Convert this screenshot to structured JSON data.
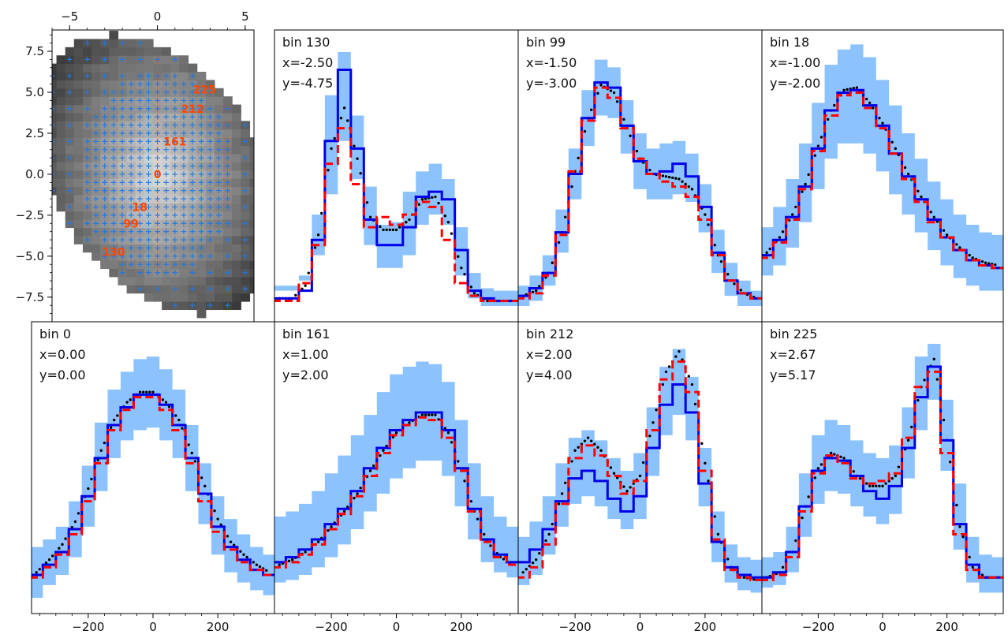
{
  "colors": {
    "model": "#0000e6",
    "alt_model": "#ff0000",
    "truth": "#000000",
    "band": "#8cc3ff",
    "map_marker": "#1e78e6",
    "map_label": "#ff4500"
  },
  "map": {
    "type": "heatmap",
    "x_ticks": [
      "−5",
      "0",
      "5"
    ],
    "y_ticks": [
      "7.5",
      "5.0",
      "2.5",
      "0.0",
      "−2.5",
      "−5.0",
      "−7.5"
    ],
    "xlim": [
      -6.0,
      5.5
    ],
    "ylim": [
      -9.0,
      8.8
    ],
    "labels": [
      {
        "text": "225",
        "x": 2.67,
        "y": 5.17
      },
      {
        "text": "212",
        "x": 2.0,
        "y": 4.0
      },
      {
        "text": "161",
        "x": 1.0,
        "y": 2.0
      },
      {
        "text": "0",
        "x": 0.0,
        "y": 0.0
      },
      {
        "text": "18",
        "x": -1.0,
        "y": -2.0
      },
      {
        "text": "99",
        "x": -1.5,
        "y": -3.0
      },
      {
        "text": "130",
        "x": -2.5,
        "y": -4.75
      }
    ]
  },
  "x_ticks": [
    "−200",
    "0",
    "200"
  ],
  "chart_data": [
    {
      "type": "line",
      "bin": "bin 130",
      "x_text": "x=-2.50",
      "y_text": "y=-4.75",
      "x": [
        -360,
        -320,
        -280,
        -240,
        -200,
        -160,
        -120,
        -80,
        -40,
        0,
        40,
        80,
        120,
        160,
        200,
        240,
        280,
        320,
        360
      ],
      "model": [
        0.03,
        0.03,
        0.06,
        0.26,
        0.65,
        0.93,
        0.62,
        0.34,
        0.24,
        0.24,
        0.31,
        0.43,
        0.45,
        0.42,
        0.22,
        0.06,
        0.03,
        0.02,
        0.02
      ],
      "alt": [
        0.02,
        0.02,
        0.09,
        0.24,
        0.56,
        0.7,
        0.48,
        0.31,
        0.35,
        0.32,
        0.36,
        0.41,
        0.39,
        0.26,
        0.09,
        0.04,
        0.02,
        0.02,
        0.02
      ],
      "truth": [
        0.03,
        0.03,
        0.08,
        0.28,
        0.62,
        0.78,
        0.58,
        0.35,
        0.3,
        0.3,
        0.34,
        0.42,
        0.43,
        0.33,
        0.15,
        0.05,
        0.02,
        0.02,
        0.02
      ],
      "lo": [
        0.06,
        0.06,
        0.1,
        0.2,
        0.44,
        0.65,
        0.5,
        0.24,
        0.15,
        0.15,
        0.2,
        0.32,
        0.36,
        0.32,
        0.12,
        0.03,
        0.0,
        0.0,
        0.0
      ],
      "hi": [
        0.08,
        0.08,
        0.12,
        0.36,
        0.83,
        1.0,
        0.75,
        0.47,
        0.32,
        0.33,
        0.45,
        0.53,
        0.56,
        0.5,
        0.31,
        0.13,
        0.07,
        0.06,
        0.06
      ]
    },
    {
      "type": "line",
      "bin": "bin 99",
      "x_text": "x=-1.50",
      "y_text": "y=-3.00",
      "x": [
        -360,
        -320,
        -280,
        -240,
        -200,
        -160,
        -120,
        -80,
        -40,
        0,
        40,
        80,
        120,
        160,
        200,
        240,
        280,
        320,
        360
      ],
      "model": [
        0.04,
        0.07,
        0.13,
        0.29,
        0.52,
        0.74,
        0.88,
        0.86,
        0.71,
        0.57,
        0.52,
        0.53,
        0.56,
        0.51,
        0.39,
        0.21,
        0.1,
        0.05,
        0.03
      ],
      "alt": [
        0.03,
        0.05,
        0.12,
        0.28,
        0.53,
        0.73,
        0.86,
        0.82,
        0.7,
        0.58,
        0.52,
        0.49,
        0.47,
        0.43,
        0.34,
        0.2,
        0.1,
        0.05,
        0.03
      ],
      "truth": [
        0.04,
        0.06,
        0.13,
        0.29,
        0.53,
        0.74,
        0.87,
        0.84,
        0.7,
        0.58,
        0.52,
        0.51,
        0.5,
        0.46,
        0.36,
        0.2,
        0.1,
        0.05,
        0.03
      ],
      "lo": [
        0.0,
        0.02,
        0.08,
        0.21,
        0.42,
        0.63,
        0.75,
        0.74,
        0.6,
        0.46,
        0.42,
        0.42,
        0.44,
        0.41,
        0.29,
        0.13,
        0.04,
        0.0,
        0.0
      ],
      "hi": [
        0.08,
        0.12,
        0.2,
        0.38,
        0.62,
        0.85,
        0.97,
        0.94,
        0.81,
        0.68,
        0.62,
        0.64,
        0.65,
        0.6,
        0.48,
        0.3,
        0.17,
        0.1,
        0.06
      ]
    },
    {
      "type": "line",
      "bin": "bin 18",
      "x_text": "x=-1.00",
      "y_text": "y=-2.00",
      "x": [
        -360,
        -320,
        -280,
        -240,
        -200,
        -160,
        -120,
        -80,
        -40,
        0,
        40,
        80,
        120,
        160,
        200,
        240,
        280,
        320,
        360
      ],
      "model": [
        0.2,
        0.26,
        0.35,
        0.47,
        0.62,
        0.77,
        0.84,
        0.85,
        0.79,
        0.71,
        0.6,
        0.51,
        0.42,
        0.34,
        0.27,
        0.22,
        0.18,
        0.16,
        0.15
      ],
      "alt": [
        0.19,
        0.25,
        0.34,
        0.46,
        0.61,
        0.75,
        0.83,
        0.84,
        0.78,
        0.7,
        0.6,
        0.5,
        0.41,
        0.33,
        0.27,
        0.22,
        0.18,
        0.16,
        0.15
      ],
      "truth": [
        0.21,
        0.27,
        0.36,
        0.48,
        0.63,
        0.77,
        0.85,
        0.86,
        0.8,
        0.72,
        0.62,
        0.52,
        0.43,
        0.35,
        0.28,
        0.23,
        0.19,
        0.17,
        0.16
      ],
      "lo": [
        0.12,
        0.16,
        0.23,
        0.33,
        0.46,
        0.58,
        0.64,
        0.64,
        0.6,
        0.53,
        0.44,
        0.36,
        0.29,
        0.22,
        0.16,
        0.11,
        0.08,
        0.06,
        0.06
      ],
      "hi": [
        0.31,
        0.39,
        0.5,
        0.64,
        0.8,
        0.95,
        1.01,
        1.03,
        0.98,
        0.89,
        0.79,
        0.68,
        0.58,
        0.49,
        0.42,
        0.36,
        0.32,
        0.29,
        0.28
      ]
    },
    {
      "type": "line",
      "bin": "bin 0",
      "x_text": "x=0.00",
      "y_text": "y=0.00",
      "x": [
        -360,
        -320,
        -280,
        -240,
        -200,
        -160,
        -120,
        -80,
        -40,
        0,
        40,
        80,
        120,
        160,
        200,
        240,
        280,
        320,
        360
      ],
      "model": [
        0.09,
        0.13,
        0.18,
        0.27,
        0.4,
        0.55,
        0.68,
        0.75,
        0.8,
        0.8,
        0.76,
        0.68,
        0.55,
        0.41,
        0.28,
        0.2,
        0.15,
        0.11,
        0.09
      ],
      "alt": [
        0.08,
        0.12,
        0.17,
        0.25,
        0.38,
        0.53,
        0.66,
        0.74,
        0.79,
        0.79,
        0.74,
        0.66,
        0.53,
        0.38,
        0.26,
        0.19,
        0.14,
        0.11,
        0.09
      ],
      "truth": [
        0.1,
        0.15,
        0.21,
        0.3,
        0.43,
        0.58,
        0.7,
        0.77,
        0.81,
        0.81,
        0.77,
        0.7,
        0.57,
        0.44,
        0.31,
        0.22,
        0.17,
        0.13,
        0.1
      ],
      "lo": [
        0.0,
        0.05,
        0.09,
        0.16,
        0.28,
        0.42,
        0.55,
        0.62,
        0.66,
        0.67,
        0.62,
        0.55,
        0.42,
        0.29,
        0.17,
        0.1,
        0.06,
        0.03,
        0.01
      ],
      "hi": [
        0.2,
        0.23,
        0.28,
        0.38,
        0.52,
        0.69,
        0.82,
        0.89,
        0.94,
        0.95,
        0.9,
        0.82,
        0.68,
        0.53,
        0.4,
        0.31,
        0.25,
        0.2,
        0.17
      ]
    },
    {
      "type": "line",
      "bin": "bin 161",
      "x_text": "x=1.00",
      "y_text": "y=2.00",
      "x": [
        -360,
        -320,
        -280,
        -240,
        -200,
        -160,
        -120,
        -80,
        -40,
        0,
        40,
        80,
        120,
        160,
        200,
        240,
        280,
        320,
        360
      ],
      "model": [
        0.14,
        0.16,
        0.19,
        0.23,
        0.29,
        0.35,
        0.42,
        0.51,
        0.59,
        0.66,
        0.7,
        0.73,
        0.73,
        0.66,
        0.51,
        0.35,
        0.23,
        0.17,
        0.14
      ],
      "alt": [
        0.12,
        0.14,
        0.17,
        0.21,
        0.27,
        0.33,
        0.4,
        0.48,
        0.57,
        0.64,
        0.68,
        0.71,
        0.7,
        0.63,
        0.5,
        0.34,
        0.22,
        0.16,
        0.13
      ],
      "truth": [
        0.13,
        0.15,
        0.18,
        0.22,
        0.28,
        0.34,
        0.41,
        0.5,
        0.58,
        0.65,
        0.69,
        0.72,
        0.72,
        0.65,
        0.5,
        0.34,
        0.22,
        0.16,
        0.13
      ],
      "lo": [
        0.06,
        0.07,
        0.09,
        0.12,
        0.16,
        0.21,
        0.27,
        0.34,
        0.41,
        0.47,
        0.51,
        0.54,
        0.54,
        0.48,
        0.36,
        0.23,
        0.14,
        0.1,
        0.08
      ],
      "hi": [
        0.32,
        0.34,
        0.37,
        0.42,
        0.49,
        0.56,
        0.64,
        0.72,
        0.81,
        0.88,
        0.91,
        0.93,
        0.92,
        0.85,
        0.7,
        0.53,
        0.4,
        0.32,
        0.28
      ]
    },
    {
      "type": "line",
      "bin": "bin 212",
      "x_text": "x=2.00",
      "y_text": "y=4.00",
      "x": [
        -360,
        -320,
        -280,
        -240,
        -200,
        -160,
        -120,
        -80,
        -40,
        0,
        40,
        80,
        120,
        160,
        200,
        240,
        280,
        320,
        360
      ],
      "model": [
        0.14,
        0.19,
        0.27,
        0.38,
        0.47,
        0.5,
        0.46,
        0.39,
        0.34,
        0.4,
        0.59,
        0.76,
        0.84,
        0.73,
        0.45,
        0.22,
        0.12,
        0.09,
        0.08
      ],
      "alt": [
        0.08,
        0.12,
        0.21,
        0.37,
        0.55,
        0.6,
        0.56,
        0.48,
        0.41,
        0.46,
        0.66,
        0.86,
        0.93,
        0.81,
        0.5,
        0.23,
        0.11,
        0.08,
        0.07
      ],
      "truth": [
        0.1,
        0.15,
        0.25,
        0.41,
        0.58,
        0.63,
        0.58,
        0.49,
        0.42,
        0.48,
        0.69,
        0.89,
        0.97,
        0.84,
        0.53,
        0.25,
        0.12,
        0.08,
        0.07
      ],
      "lo": [
        0.05,
        0.09,
        0.17,
        0.28,
        0.37,
        0.4,
        0.36,
        0.31,
        0.27,
        0.31,
        0.48,
        0.64,
        0.72,
        0.62,
        0.36,
        0.14,
        0.06,
        0.03,
        0.02
      ],
      "hi": [
        0.24,
        0.3,
        0.4,
        0.53,
        0.63,
        0.66,
        0.62,
        0.55,
        0.5,
        0.57,
        0.75,
        0.91,
        0.98,
        0.87,
        0.59,
        0.34,
        0.21,
        0.16,
        0.15
      ]
    },
    {
      "type": "line",
      "bin": "bin 225",
      "x_text": "x=2.67",
      "y_text": "y=5.17",
      "x": [
        -360,
        -320,
        -280,
        -240,
        -200,
        -160,
        -120,
        -80,
        -40,
        0,
        40,
        80,
        120,
        160,
        200,
        240,
        280,
        320,
        360
      ],
      "model": [
        0.08,
        0.1,
        0.18,
        0.36,
        0.5,
        0.55,
        0.54,
        0.48,
        0.42,
        0.39,
        0.44,
        0.59,
        0.79,
        0.91,
        0.62,
        0.29,
        0.13,
        0.08,
        0.08
      ],
      "alt": [
        0.07,
        0.09,
        0.16,
        0.34,
        0.49,
        0.56,
        0.53,
        0.47,
        0.45,
        0.46,
        0.49,
        0.63,
        0.83,
        0.89,
        0.57,
        0.25,
        0.11,
        0.08,
        0.08
      ],
      "truth": [
        0.08,
        0.1,
        0.18,
        0.36,
        0.51,
        0.57,
        0.55,
        0.48,
        0.44,
        0.44,
        0.48,
        0.62,
        0.83,
        0.94,
        0.62,
        0.28,
        0.12,
        0.08,
        0.08
      ],
      "lo": [
        0.04,
        0.05,
        0.1,
        0.24,
        0.37,
        0.42,
        0.41,
        0.36,
        0.32,
        0.29,
        0.33,
        0.47,
        0.66,
        0.78,
        0.5,
        0.19,
        0.06,
        0.02,
        0.02
      ],
      "hi": [
        0.16,
        0.18,
        0.28,
        0.49,
        0.64,
        0.7,
        0.68,
        0.62,
        0.57,
        0.55,
        0.6,
        0.75,
        0.95,
        1.0,
        0.78,
        0.45,
        0.24,
        0.17,
        0.16
      ]
    }
  ]
}
